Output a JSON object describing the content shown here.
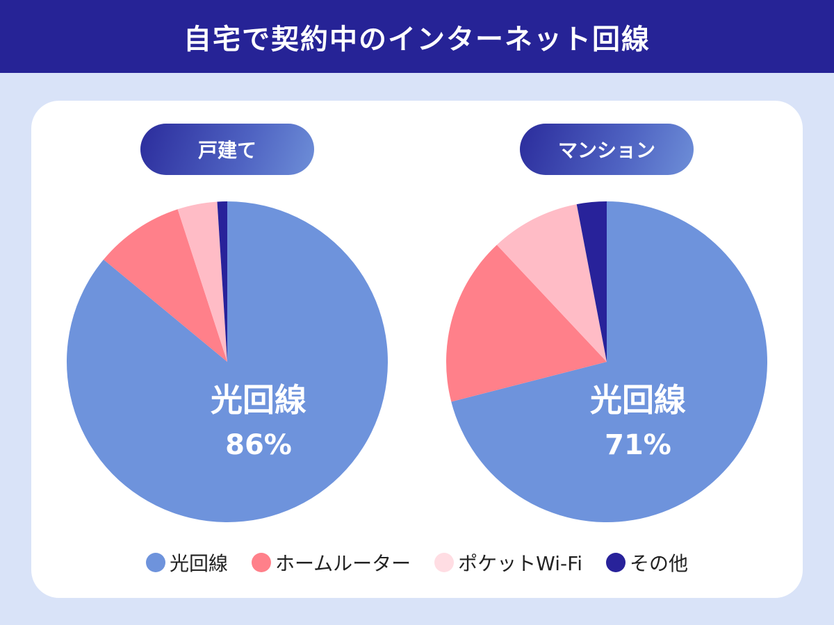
{
  "title": "自宅で契約中のインターネット回線",
  "colors": {
    "光回線": "#6e93dc",
    "ホームルーター": "#ff808a",
    "ポケットWi-Fi": "#ffbcc6",
    "その他": "#28229a",
    "legend_pocket": "#ffdde3"
  },
  "chart_data": [
    {
      "type": "pie",
      "title": "戸建て",
      "categories": [
        "光回線",
        "ホームルーター",
        "ポケットWi-Fi",
        "その他"
      ],
      "values": [
        86,
        9,
        4,
        1
      ],
      "highlight": {
        "label": "光回線",
        "value": "86%"
      }
    },
    {
      "type": "pie",
      "title": "マンション",
      "categories": [
        "光回線",
        "ホームルーター",
        "ポケットWi-Fi",
        "その他"
      ],
      "values": [
        71,
        17,
        9,
        3
      ],
      "highlight": {
        "label": "光回線",
        "value": "71%"
      }
    }
  ],
  "legend": [
    "光回線",
    "ホームルーター",
    "ポケットWi-Fi",
    "その他"
  ]
}
